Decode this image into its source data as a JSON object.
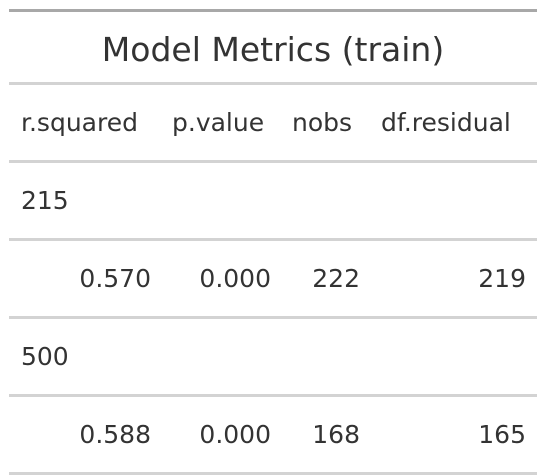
{
  "table": {
    "title": "Model Metrics (train)",
    "columns": [
      "r.squared",
      "p.value",
      "nobs",
      "df.residual"
    ],
    "groups": [
      {
        "label": "215",
        "row": [
          "0.570",
          "0.000",
          "222",
          "219"
        ]
      },
      {
        "label": "500",
        "row": [
          "0.588",
          "0.000",
          "168",
          "165"
        ]
      }
    ]
  },
  "colors": {
    "text": "#333333",
    "top_rule": "#a8a8a8",
    "row_rule": "#d3d3d3"
  }
}
